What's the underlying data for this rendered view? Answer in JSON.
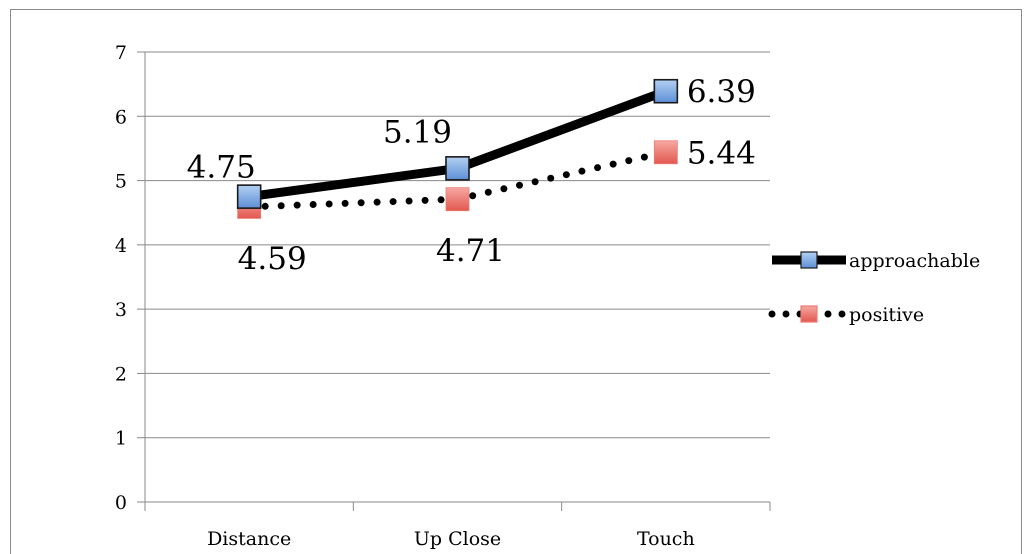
{
  "chart_data": {
    "type": "line",
    "categories": [
      "Distance",
      "Up Close",
      "Touch"
    ],
    "ylim": [
      0,
      7
    ],
    "yticks": [
      "0",
      "1",
      "2",
      "3",
      "4",
      "5",
      "6",
      "7"
    ],
    "grid": true,
    "legend": "right",
    "series": [
      {
        "name": "approachable",
        "values": [
          4.75,
          5.19,
          6.39
        ],
        "labels": [
          "4.75",
          "5.19",
          "6.39"
        ],
        "line_color": "#000000",
        "line_style": "solid",
        "marker_color": "#7FA9E0",
        "marker_edge": "#1a1a1a"
      },
      {
        "name": "positive",
        "values": [
          4.59,
          4.71,
          5.44
        ],
        "labels": [
          "4.59",
          "4.71",
          "5.44"
        ],
        "line_color": "#000000",
        "line_style": "dotted",
        "marker_color": "#EE7B74",
        "marker_edge": "#EE7B74"
      }
    ]
  }
}
